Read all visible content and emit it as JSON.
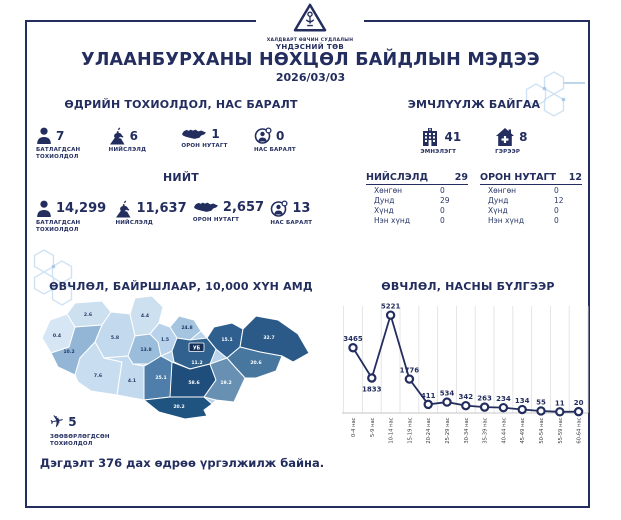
{
  "header": {
    "org_line1": "ХАЛДВАРТ ӨВЧИН СУДЛАЛЫН",
    "org_line2": "ҮНДЭСНИЙ ТӨВ",
    "title": "УЛААНБУРХАНЫ НӨХЦӨЛ БАЙДЛЫН МЭДЭЭ",
    "date": "2026/03/03"
  },
  "daily": {
    "title": "ӨДРИЙН ТОХИОЛДОЛ, НАС БАРАЛТ",
    "stats": [
      {
        "icon": "person-icon",
        "value": "7",
        "label": "БАТЛАГДСАН ТОХИОЛДОЛ"
      },
      {
        "icon": "statue-icon",
        "value": "6",
        "label": "НИЙСЛЭЛД"
      },
      {
        "icon": "mongolia-icon",
        "value": "1",
        "label": "ОРОН НУТАГТ"
      },
      {
        "icon": "death-icon",
        "value": "0",
        "label": "НАС БАРАЛТ"
      }
    ]
  },
  "total": {
    "title": "НИЙТ",
    "stats": [
      {
        "icon": "person-icon",
        "value": "14,299",
        "label": "БАТЛАГДСАН ТОХИОЛДОЛ"
      },
      {
        "icon": "statue-icon",
        "value": "11,637",
        "label": "НИЙСЛЭЛД"
      },
      {
        "icon": "mongolia-icon",
        "value": "2,657",
        "label": "ОРОН НУТАГТ"
      },
      {
        "icon": "death-icon",
        "value": "13",
        "label": "НАС БАРАЛТ"
      }
    ]
  },
  "treatment": {
    "title": "ЭМЧЛҮҮЛЖ БАЙГАА",
    "stats": [
      {
        "icon": "hospital-icon",
        "value": "41",
        "label": "ЭМНЭЛЭГТ"
      },
      {
        "icon": "home-icon",
        "value": "8",
        "label": "ГЭРЭЭР"
      }
    ],
    "tables": [
      {
        "title": "НИЙСЛЭЛД",
        "total": "29",
        "rows": [
          [
            "Хөнгөн",
            "0"
          ],
          [
            "Дунд",
            "29"
          ],
          [
            "Хүнд",
            "0"
          ],
          [
            "Нэн хүнд",
            "0"
          ]
        ]
      },
      {
        "title": "ОРОН НУТАГТ",
        "total": "12",
        "rows": [
          [
            "Хөнгөн",
            "0"
          ],
          [
            "Дунд",
            "12"
          ],
          [
            "Хүнд",
            "0"
          ],
          [
            "Нэн хүнд",
            "0"
          ]
        ]
      }
    ]
  },
  "map_section": {
    "title": "ӨВЧЛӨЛ, БАЙРШЛААР, 10,000 ХҮН АМД",
    "capital_label": "УБ",
    "imported": {
      "icon": "airplane-icon",
      "value": "5",
      "label": "ЗӨӨВӨРЛӨГДСӨН ТОХИОЛДОЛ"
    },
    "regions": [
      {
        "name": "bayan-ulgii",
        "value": "0.4",
        "fill": "#d7e6f4",
        "text": "#1f3a68"
      },
      {
        "name": "uvs",
        "value": "2.6",
        "fill": "#cde0f0",
        "text": "#1f3a68"
      },
      {
        "name": "khovd",
        "value": "10.2",
        "fill": "#93b6d6",
        "text": "#1f3a68"
      },
      {
        "name": "zavkhan",
        "value": "5.8",
        "fill": "#c3daee",
        "text": "#1f3a68"
      },
      {
        "name": "khuvsgul",
        "value": "4.4",
        "fill": "#cde0f0",
        "text": "#1f3a68"
      },
      {
        "name": "govi-altai",
        "value": "7.6",
        "fill": "#c8ddef",
        "text": "#1f3a68"
      },
      {
        "name": "arkhangai",
        "value": "13.8",
        "fill": "#9abddb",
        "text": "#1f3a68"
      },
      {
        "name": "bayankhongor",
        "value": "4.1",
        "fill": "#c3daee",
        "text": "#1f3a68"
      },
      {
        "name": "bulgan",
        "value": "1.5",
        "fill": "#b7d2ea",
        "text": "#1f3a68"
      },
      {
        "name": "selenge",
        "value": "24.8",
        "fill": "#a4c4e0",
        "text": "#1f3a68"
      },
      {
        "name": "uvurkhangai",
        "value": "25.1",
        "fill": "#4e7ea9",
        "text": "#ffffff"
      },
      {
        "name": "tuv",
        "value": "11.2",
        "fill": "#31628f",
        "text": "#ffffff"
      },
      {
        "name": "dundgovi",
        "value": "58.6",
        "fill": "#1f4e7c",
        "text": "#ffffff"
      },
      {
        "name": "umnugovi",
        "value": "20.2",
        "fill": "#1f5480",
        "text": "#ffffff"
      },
      {
        "name": "khentii",
        "value": "15.1",
        "fill": "#2e5f8e",
        "text": "#ffffff"
      },
      {
        "name": "dornod",
        "value": "32.7",
        "fill": "#2b5a88",
        "text": "#ffffff"
      },
      {
        "name": "sukhbaatar",
        "value": "20.6",
        "fill": "#47779f",
        "text": "#ffffff"
      },
      {
        "name": "dornogovi",
        "value": "19.2",
        "fill": "#6790b3",
        "text": "#ffffff"
      }
    ]
  },
  "chart_data": {
    "type": "line",
    "title": "ӨВЧЛӨЛ, НАСНЫ БҮЛГЭЭР",
    "categories": [
      "0-4 нас",
      "5-9 нас",
      "10-14 нас",
      "15-19 нас",
      "20-24 нас",
      "25-29 нас",
      "30-34 нас",
      "35-39 нас",
      "40-44 нас",
      "45-49 нас",
      "50-54 нас",
      "55-59 нас",
      "60-64 нас"
    ],
    "values": [
      3465,
      1833,
      5221,
      1776,
      411,
      534,
      342,
      263,
      234,
      134,
      55,
      11,
      20
    ],
    "xlabel": "",
    "ylabel": "",
    "ylim": [
      0,
      5500
    ],
    "grid": "vertical",
    "legend": "none",
    "line_color": "#232d5e"
  },
  "footer": {
    "note": "Дэгдэлт 376 дах өдрөө үргэлжилж байна."
  },
  "colors": {
    "navy": "#232d5e",
    "map_base": "#b9d3ea",
    "hex_deco": "#cfe2f4",
    "grid": "#e1e1e1"
  }
}
